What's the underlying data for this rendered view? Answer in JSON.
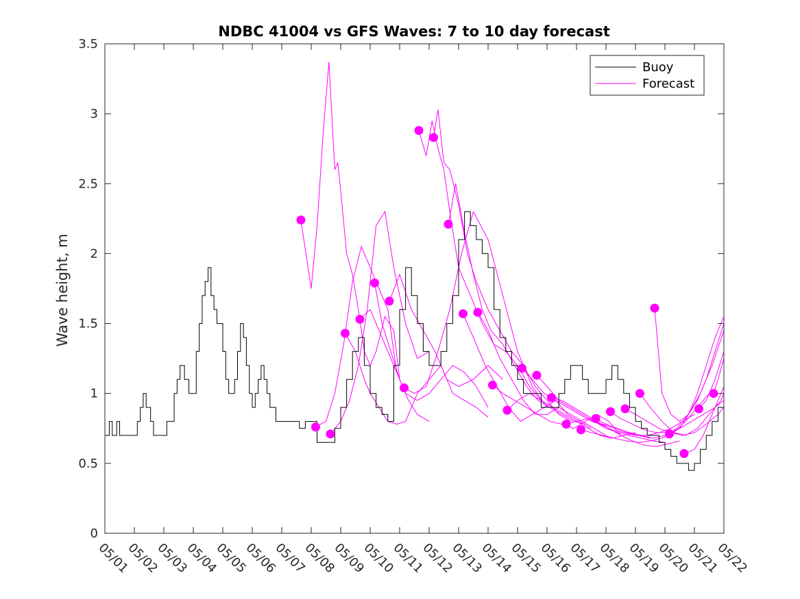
{
  "chart_data": {
    "type": "line",
    "title": "NDBC 41004 vs GFS Waves: 7 to 10 day forecast",
    "xlabel": "",
    "ylabel": "Wave height, m",
    "xlim": [
      0,
      21
    ],
    "ylim": [
      0,
      3.5
    ],
    "x_ticks": [
      0,
      1,
      2,
      3,
      4,
      5,
      6,
      7,
      8,
      9,
      10,
      11,
      12,
      13,
      14,
      15,
      16,
      17,
      18,
      19,
      20,
      21
    ],
    "x_tick_labels": [
      "05/01",
      "05/02",
      "05/03",
      "05/04",
      "05/05",
      "05/06",
      "05/07",
      "05/08",
      "05/09",
      "05/10",
      "05/11",
      "05/12",
      "05/13",
      "05/14",
      "05/15",
      "05/16",
      "05/17",
      "05/18",
      "05/19",
      "05/20",
      "05/21",
      "05/22"
    ],
    "y_ticks": [
      0,
      0.5,
      1,
      1.5,
      2,
      2.5,
      3,
      3.5
    ],
    "y_tick_labels": [
      "0",
      "0.5",
      "1",
      "1.5",
      "2",
      "2.5",
      "3",
      "3.5"
    ],
    "grid": false,
    "legend_position": "top-right",
    "colors": {
      "buoy": "#000000",
      "forecast": "#ff00ff"
    },
    "series": [
      {
        "name": "Buoy",
        "role": "buoy",
        "x": [
          0,
          0.15,
          0.25,
          0.4,
          0.5,
          0.6,
          1.0,
          1.1,
          1.2,
          1.3,
          1.4,
          1.55,
          1.65,
          1.8,
          1.95,
          2.1,
          2.2,
          2.35,
          2.45,
          2.55,
          2.7,
          2.85,
          3.0,
          3.1,
          3.2,
          3.3,
          3.4,
          3.5,
          3.6,
          3.7,
          3.8,
          3.9,
          4.0,
          4.1,
          4.2,
          4.3,
          4.4,
          4.5,
          4.6,
          4.7,
          4.8,
          4.9,
          5.0,
          5.1,
          5.2,
          5.3,
          5.4,
          5.5,
          5.6,
          5.8,
          6.0,
          6.2,
          6.4,
          6.6,
          6.8,
          7.0,
          7.2,
          7.4,
          7.6,
          7.8,
          8.0,
          8.2,
          8.4,
          8.6,
          8.8,
          9.0,
          9.2,
          9.4,
          9.6,
          9.8,
          10.0,
          10.2,
          10.4,
          10.6,
          10.8,
          11.0,
          11.2,
          11.4,
          11.6,
          11.8,
          12.0,
          12.2,
          12.4,
          12.6,
          12.8,
          13.0,
          13.2,
          13.4,
          13.6,
          13.8,
          14.0,
          14.2,
          14.4,
          14.6,
          14.8,
          15.0,
          15.2,
          15.4,
          15.6,
          15.8,
          16.0,
          16.2,
          16.4,
          16.6,
          16.8,
          17.0,
          17.2,
          17.4,
          17.6,
          17.8,
          18.0,
          18.2,
          18.4,
          18.6,
          18.8,
          19.0,
          19.2,
          19.4,
          19.6,
          19.8,
          20.0,
          20.2,
          20.4,
          20.6,
          20.8,
          21.0
        ],
        "y": [
          0.7,
          0.8,
          0.7,
          0.8,
          0.7,
          0.7,
          0.7,
          0.8,
          0.9,
          1.0,
          0.9,
          0.8,
          0.7,
          0.7,
          0.7,
          0.8,
          0.8,
          1.0,
          1.1,
          1.2,
          1.1,
          1.0,
          1.0,
          1.3,
          1.5,
          1.7,
          1.8,
          1.9,
          1.7,
          1.6,
          1.5,
          1.5,
          1.3,
          1.1,
          1.0,
          1.0,
          1.1,
          1.3,
          1.5,
          1.4,
          1.2,
          1.0,
          0.9,
          1.0,
          1.1,
          1.2,
          1.1,
          1.0,
          0.9,
          0.8,
          0.8,
          0.8,
          0.8,
          0.75,
          0.8,
          0.8,
          0.65,
          0.65,
          0.65,
          0.75,
          0.9,
          1.1,
          1.3,
          1.4,
          1.2,
          1.0,
          0.9,
          0.85,
          0.8,
          1.2,
          1.6,
          1.9,
          1.7,
          1.5,
          1.3,
          1.2,
          1.2,
          1.3,
          1.5,
          1.7,
          2.1,
          2.3,
          2.2,
          2.1,
          2.0,
          1.9,
          1.6,
          1.4,
          1.3,
          1.2,
          1.1,
          1.0,
          1.0,
          1.0,
          0.9,
          0.9,
          0.9,
          1.0,
          1.1,
          1.2,
          1.2,
          1.1,
          1.0,
          1.0,
          1.0,
          1.1,
          1.2,
          1.1,
          1.0,
          0.9,
          0.8,
          0.75,
          0.7,
          0.7,
          0.65,
          0.6,
          0.55,
          0.5,
          0.5,
          0.45,
          0.5,
          0.6,
          0.7,
          0.8,
          0.9,
          1.0
        ]
      },
      {
        "name": "Forecast",
        "role": "forecast",
        "x": [
          6.65,
          7.0,
          7.2,
          7.4,
          7.6,
          7.8,
          7.9,
          8.0,
          8.2,
          8.4,
          8.6,
          8.8,
          9.0,
          9.2,
          9.5,
          9.8,
          10.0
        ],
        "y": [
          2.24,
          1.75,
          2.2,
          2.85,
          3.37,
          2.6,
          2.65,
          2.45,
          2.0,
          1.85,
          1.6,
          1.3,
          1.2,
          1.3,
          1.55,
          1.45,
          1.1
        ]
      },
      {
        "name": "",
        "role": "forecast",
        "x": [
          7.15,
          7.5,
          7.8,
          8.1,
          8.4,
          8.7,
          9.0,
          9.3,
          9.6,
          9.9
        ],
        "y": [
          0.76,
          0.8,
          1.0,
          1.35,
          1.8,
          2.05,
          1.9,
          1.75,
          1.6,
          1.15
        ]
      },
      {
        "name": "",
        "role": "forecast",
        "x": [
          7.65,
          8.0,
          8.3,
          8.6,
          8.9,
          9.2,
          9.5,
          9.8,
          10.2,
          10.6,
          11.0
        ],
        "y": [
          0.71,
          0.8,
          0.95,
          1.2,
          1.6,
          2.2,
          2.3,
          1.9,
          1.5,
          1.25,
          1.3
        ]
      },
      {
        "name": "",
        "role": "forecast",
        "x": [
          8.15,
          8.5,
          8.8,
          9.0,
          9.3,
          9.6,
          9.9,
          10.2,
          10.6,
          11.0,
          11.4,
          11.8,
          12.2,
          12.6,
          13.0
        ],
        "y": [
          1.43,
          1.3,
          1.1,
          1.0,
          0.9,
          0.8,
          0.78,
          0.8,
          1.0,
          1.1,
          1.2,
          1.0,
          0.95,
          0.9,
          0.83
        ]
      },
      {
        "name": "",
        "role": "forecast",
        "x": [
          8.65,
          9.0,
          9.4,
          9.8,
          10.2,
          10.6,
          11.0,
          11.4,
          11.8,
          12.2,
          12.6,
          13.0
        ],
        "y": [
          1.53,
          1.6,
          1.4,
          1.2,
          1.0,
          0.95,
          1.0,
          1.1,
          1.2,
          1.15,
          1.05,
          0.9
        ]
      },
      {
        "name": "",
        "role": "forecast",
        "x": [
          9.15,
          9.4,
          9.7,
          10.0,
          10.3,
          10.6,
          11.0
        ],
        "y": [
          1.79,
          1.5,
          1.3,
          1.1,
          0.95,
          0.85,
          0.8
        ]
      },
      {
        "name": "",
        "role": "forecast",
        "x": [
          9.65,
          10.0,
          10.4,
          10.8,
          11.2,
          11.6,
          12.0,
          12.5,
          13.0,
          13.5
        ],
        "y": [
          1.66,
          1.85,
          1.6,
          1.45,
          1.3,
          1.1,
          1.05,
          1.1,
          1.2,
          1.1
        ]
      },
      {
        "name": "",
        "role": "forecast",
        "x": [
          10.15,
          10.5,
          10.9,
          11.3,
          11.7,
          12.1,
          12.5,
          13.0,
          13.5,
          14.0,
          14.5,
          15.0
        ],
        "y": [
          1.04,
          1.0,
          1.05,
          1.3,
          1.6,
          2.0,
          2.3,
          2.1,
          1.7,
          1.3,
          1.05,
          0.9
        ]
      },
      {
        "name": "",
        "role": "forecast",
        "x": [
          10.65,
          10.9,
          11.1,
          11.3,
          11.5,
          11.7,
          12.0,
          12.4,
          12.8,
          13.2,
          13.6,
          14.0,
          14.4,
          14.8,
          15.2
        ],
        "y": [
          2.88,
          2.7,
          2.95,
          2.75,
          2.6,
          2.3,
          1.9,
          1.7,
          1.5,
          1.35,
          1.3,
          1.2,
          1.05,
          0.95,
          0.9
        ]
      },
      {
        "name": "",
        "role": "forecast",
        "x": [
          11.15,
          11.3,
          11.5,
          11.7,
          12.0,
          12.3,
          12.6,
          13.0,
          13.4,
          13.8,
          14.2,
          14.6,
          15.0,
          15.4,
          15.8
        ],
        "y": [
          2.83,
          3.03,
          2.65,
          2.6,
          2.35,
          2.0,
          1.8,
          1.6,
          1.45,
          1.3,
          1.2,
          1.05,
          0.95,
          0.85,
          0.8
        ]
      },
      {
        "name": "",
        "role": "forecast",
        "x": [
          11.65,
          11.9,
          12.2,
          12.5,
          12.8,
          13.1,
          13.5,
          13.9,
          14.3,
          14.7,
          15.1,
          15.5,
          15.9,
          16.3
        ],
        "y": [
          2.21,
          2.5,
          2.15,
          1.85,
          1.6,
          1.45,
          1.35,
          1.2,
          1.05,
          0.95,
          0.9,
          0.85,
          0.8,
          0.78
        ]
      },
      {
        "name": "",
        "role": "forecast",
        "x": [
          12.15,
          12.5,
          12.9,
          13.3,
          13.7,
          14.1,
          14.5,
          14.9,
          15.3,
          15.7,
          16.1,
          16.5
        ],
        "y": [
          1.57,
          1.4,
          1.2,
          1.05,
          0.9,
          0.8,
          0.85,
          0.9,
          0.95,
          0.85,
          0.8,
          0.75
        ]
      },
      {
        "name": "",
        "role": "forecast",
        "x": [
          12.65,
          13.0,
          13.4,
          13.8,
          14.2,
          14.6,
          15.0,
          15.4,
          15.8,
          16.2,
          16.6,
          17.0
        ],
        "y": [
          1.58,
          1.45,
          1.25,
          1.1,
          0.95,
          0.85,
          0.85,
          0.9,
          0.85,
          0.8,
          0.75,
          0.7
        ]
      },
      {
        "name": "",
        "role": "forecast",
        "x": [
          13.15,
          13.5,
          13.9,
          14.3,
          14.7,
          15.1,
          15.5,
          15.9,
          16.3,
          16.7,
          17.1,
          17.5
        ],
        "y": [
          1.06,
          1.0,
          0.95,
          0.9,
          0.85,
          0.8,
          0.78,
          0.75,
          0.8,
          0.85,
          0.8,
          0.7
        ]
      },
      {
        "name": "",
        "role": "forecast",
        "x": [
          13.65,
          14.0,
          14.4,
          14.8,
          15.2,
          15.6,
          16.0,
          16.4,
          16.8,
          17.2,
          17.6,
          18.0
        ],
        "y": [
          0.88,
          0.95,
          1.0,
          0.95,
          0.9,
          0.85,
          0.8,
          0.75,
          0.7,
          0.68,
          0.7,
          0.72
        ]
      },
      {
        "name": "",
        "role": "forecast",
        "x": [
          14.15,
          14.5,
          14.9,
          15.3,
          15.7,
          16.1,
          16.5,
          16.9,
          17.3,
          17.7,
          18.1,
          18.5
        ],
        "y": [
          1.18,
          1.1,
          1.0,
          0.95,
          0.9,
          0.85,
          0.8,
          0.78,
          0.75,
          0.72,
          0.7,
          0.68
        ]
      },
      {
        "name": "",
        "role": "forecast",
        "x": [
          14.65,
          15.0,
          15.4,
          15.8,
          16.2,
          16.6,
          17.0,
          17.4,
          17.8,
          18.2,
          18.6,
          19.0
        ],
        "y": [
          1.13,
          1.05,
          0.95,
          0.9,
          0.85,
          0.8,
          0.75,
          0.72,
          0.7,
          0.68,
          0.66,
          0.65
        ]
      },
      {
        "name": "",
        "role": "forecast",
        "x": [
          15.15,
          15.5,
          15.9,
          16.3,
          16.7,
          17.1,
          17.5,
          17.9,
          18.3,
          18.7,
          19.1,
          19.5
        ],
        "y": [
          0.97,
          0.95,
          0.9,
          0.85,
          0.8,
          0.75,
          0.7,
          0.66,
          0.63,
          0.62,
          0.64,
          0.66
        ]
      },
      {
        "name": "",
        "role": "forecast",
        "x": [
          15.65,
          16.0,
          16.4,
          16.8,
          17.2,
          17.6,
          18.0,
          18.4,
          18.8,
          19.2,
          19.6,
          20.0
        ],
        "y": [
          0.78,
          0.8,
          0.82,
          0.78,
          0.74,
          0.72,
          0.7,
          0.7,
          0.72,
          0.75,
          0.8,
          0.85
        ]
      },
      {
        "name": "",
        "role": "forecast",
        "x": [
          16.15,
          16.5,
          16.9,
          17.3,
          17.7,
          18.1,
          18.5,
          18.9,
          19.3,
          19.7,
          20.1,
          20.5
        ],
        "y": [
          0.74,
          0.72,
          0.7,
          0.68,
          0.66,
          0.65,
          0.66,
          0.68,
          0.72,
          0.8,
          0.9,
          1.0
        ]
      },
      {
        "name": "",
        "role": "forecast",
        "x": [
          16.65,
          17.0,
          17.4,
          17.8,
          18.2,
          18.6,
          19.0,
          19.4,
          19.8,
          20.2,
          20.6,
          21.0
        ],
        "y": [
          0.82,
          0.78,
          0.75,
          0.72,
          0.7,
          0.68,
          0.7,
          0.75,
          0.85,
          1.0,
          1.2,
          1.45
        ]
      },
      {
        "name": "",
        "role": "forecast",
        "x": [
          17.15,
          17.5,
          17.9,
          18.3,
          18.7,
          19.1,
          19.5,
          19.9,
          20.3,
          20.7,
          21.0
        ],
        "y": [
          0.87,
          0.82,
          0.78,
          0.74,
          0.72,
          0.72,
          0.75,
          0.8,
          0.85,
          0.9,
          0.95
        ]
      },
      {
        "name": "",
        "role": "forecast",
        "x": [
          17.65,
          18.0,
          18.4,
          18.8,
          19.2,
          19.6,
          20.0,
          20.4,
          20.8,
          21.0
        ],
        "y": [
          0.89,
          0.85,
          0.8,
          0.75,
          0.72,
          0.7,
          0.72,
          0.78,
          0.85,
          0.9
        ]
      },
      {
        "name": "",
        "role": "forecast",
        "x": [
          18.15,
          18.5,
          18.9,
          19.3,
          19.7,
          20.1,
          20.5,
          20.9,
          21.0
        ],
        "y": [
          1.0,
          0.9,
          0.8,
          0.72,
          0.7,
          0.75,
          0.85,
          0.95,
          1.0
        ]
      },
      {
        "name": "",
        "role": "forecast",
        "x": [
          18.65,
          18.9,
          19.2,
          19.5,
          19.8,
          20.1,
          20.4,
          20.7,
          21.0
        ],
        "y": [
          1.61,
          1.0,
          0.85,
          0.8,
          0.85,
          0.95,
          1.1,
          1.3,
          1.5
        ]
      },
      {
        "name": "",
        "role": "forecast",
        "x": [
          19.15,
          19.5,
          19.8,
          20.1,
          20.4,
          20.7,
          21.0
        ],
        "y": [
          0.71,
          0.75,
          0.85,
          1.0,
          1.2,
          1.4,
          1.55
        ]
      },
      {
        "name": "",
        "role": "forecast",
        "x": [
          19.65,
          20.0,
          20.3,
          20.6,
          20.9,
          21.0
        ],
        "y": [
          0.57,
          0.6,
          0.7,
          0.85,
          1.0,
          1.05
        ]
      },
      {
        "name": "",
        "role": "forecast",
        "x": [
          20.15,
          20.4,
          20.7,
          21.0
        ],
        "y": [
          0.89,
          0.95,
          1.1,
          1.3
        ]
      },
      {
        "name": "",
        "role": "forecast",
        "x": [
          20.65,
          20.8,
          21.0
        ],
        "y": [
          1.0,
          1.1,
          1.25
        ]
      }
    ],
    "markers": {
      "color": "#ff00ff",
      "x": [
        6.65,
        7.15,
        7.65,
        8.15,
        8.65,
        9.15,
        9.65,
        10.15,
        10.65,
        11.15,
        11.65,
        12.15,
        12.65,
        13.15,
        13.65,
        14.15,
        14.65,
        15.15,
        15.65,
        16.15,
        16.65,
        17.15,
        17.65,
        18.15,
        18.65,
        19.15,
        19.65,
        20.15,
        20.65
      ],
      "y": [
        2.24,
        0.76,
        0.71,
        1.43,
        1.53,
        1.79,
        1.66,
        1.04,
        2.88,
        2.83,
        2.21,
        1.57,
        1.58,
        1.06,
        0.88,
        1.18,
        1.13,
        0.97,
        0.78,
        0.74,
        0.82,
        0.87,
        0.89,
        1.0,
        1.61,
        0.71,
        0.57,
        0.89,
        1.0
      ]
    },
    "legend": [
      {
        "label": "Buoy",
        "color": "#000000"
      },
      {
        "label": "Forecast",
        "color": "#ff00ff"
      }
    ]
  }
}
